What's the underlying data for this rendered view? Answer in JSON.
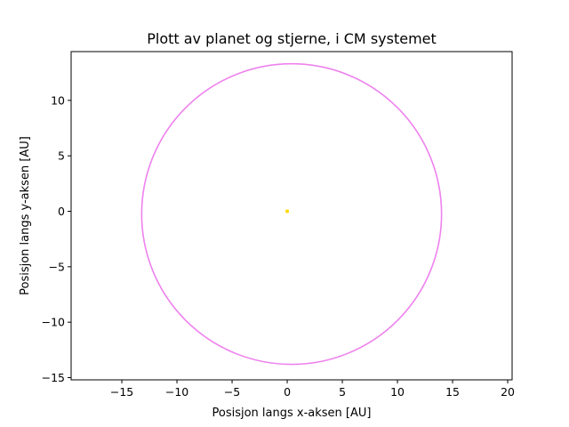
{
  "chart_data": {
    "type": "line",
    "title": "Plott av planet og stjerne, i CM systemet",
    "xlabel": "Posisjon langs x-aksen [AU]",
    "ylabel": "Posisjon langs y-aksen [AU]",
    "xlim": [
      -19.6,
      20.4
    ],
    "ylim": [
      -15.2,
      14.4
    ],
    "xticks": [
      -15,
      -10,
      -5,
      0,
      5,
      10,
      15,
      20
    ],
    "yticks": [
      -15,
      -10,
      -5,
      0,
      5,
      10
    ],
    "xtick_labels": [
      "−15",
      "−10",
      "−5",
      "0",
      "5",
      "10",
      "15",
      "20"
    ],
    "ytick_labels": [
      "−15",
      "−10",
      "−5",
      "0",
      "5",
      "10"
    ],
    "grid": false,
    "series": [
      {
        "color": "#ee82ee",
        "orbit": {
          "center": [
            0.4,
            -0.25
          ],
          "radius_x": 13.6,
          "radius_y": 13.55
        }
      },
      {
        "color": "#ffd700",
        "orbit": {
          "center": [
            0.0,
            0.0
          ],
          "radius_x": 0.07,
          "radius_y": 0.07
        }
      }
    ]
  }
}
